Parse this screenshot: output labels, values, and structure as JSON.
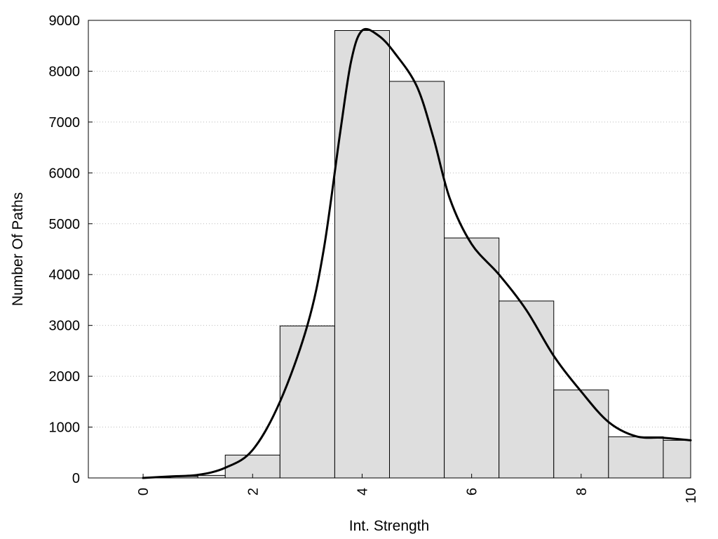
{
  "chart_data": {
    "type": "bar",
    "xlabel": "Int. Strength",
    "ylabel": "Number Of Paths",
    "xlim": [
      -1,
      10
    ],
    "ylim": [
      0,
      9000
    ],
    "x_ticks": [
      0,
      2,
      4,
      6,
      8,
      10
    ],
    "y_ticks": [
      0,
      1000,
      2000,
      3000,
      4000,
      5000,
      6000,
      7000,
      8000,
      9000
    ],
    "grid": "horizontal dotted",
    "bars": [
      {
        "x0": 0,
        "x1": 0.5,
        "value": 10
      },
      {
        "x0": 0.5,
        "x1": 1,
        "value": 30
      },
      {
        "x0": 1,
        "x1": 1.5,
        "value": 50
      },
      {
        "x0": 1.5,
        "x1": 2.5,
        "value": 450
      },
      {
        "x0": 2.5,
        "x1": 3.5,
        "value": 2990
      },
      {
        "x0": 3.5,
        "x1": 4.5,
        "value": 8800
      },
      {
        "x0": 4.5,
        "x1": 5.5,
        "value": 7800
      },
      {
        "x0": 5.5,
        "x1": 6.5,
        "value": 4720
      },
      {
        "x0": 6.5,
        "x1": 7.5,
        "value": 3480
      },
      {
        "x0": 7.5,
        "x1": 8.5,
        "value": 1730
      },
      {
        "x0": 8.5,
        "x1": 9.5,
        "value": 810
      },
      {
        "x0": 9.5,
        "x1": 10,
        "value": 740
      }
    ],
    "curve": {
      "x": [
        0,
        0.5,
        1,
        1.5,
        2,
        2.5,
        3,
        3.3,
        3.6,
        3.8,
        4,
        4.3,
        4.6,
        5,
        5.3,
        5.6,
        6,
        6.5,
        7,
        7.5,
        8,
        8.5,
        9,
        9.5,
        10
      ],
      "y": [
        0,
        30,
        60,
        200,
        550,
        1500,
        3000,
        4500,
        6800,
        8200,
        8800,
        8700,
        8350,
        7700,
        6700,
        5500,
        4600,
        4000,
        3300,
        2400,
        1700,
        1100,
        820,
        790,
        740
      ]
    },
    "bar_color": "#dedede",
    "line_color": "#000000"
  }
}
